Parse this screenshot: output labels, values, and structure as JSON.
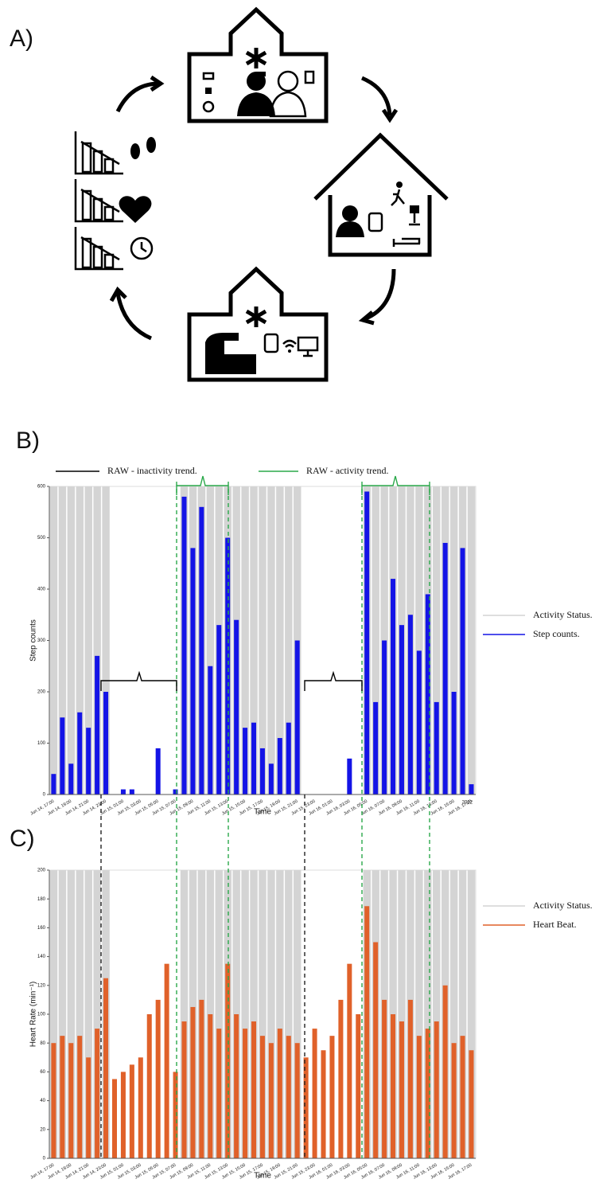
{
  "diagram": {
    "label": "A)"
  },
  "chart_data": [
    {
      "type": "bar",
      "label": "B)",
      "annotations": [
        "RAW - inactivity trend.",
        "RAW - activity trend.",
        "2022"
      ],
      "ylabel": "Step counts",
      "xlabel": "Time",
      "categories": [
        "Jun 14, 17:00",
        null,
        "Jun 14, 19:00",
        null,
        "Jun 14, 21:00",
        null,
        "Jun 14, 23:00",
        null,
        "Jun 15, 01:00",
        null,
        "Jun 15, 03:00",
        null,
        "Jun 15, 05:00",
        null,
        "Jun 15, 07:00",
        null,
        "Jun 15, 09:00",
        null,
        "Jun 15, 11:00",
        null,
        "Jun 15, 13:00",
        null,
        "Jun 15, 15:00",
        null,
        "Jun 15, 17:00",
        null,
        "Jun 15, 19:00",
        null,
        "Jun 15, 21:00",
        null,
        "Jun 15, 23:00",
        null,
        "Jun 16, 01:00",
        null,
        "Jun 16, 03:00",
        null,
        "Jun 16, 05:00",
        null,
        "Jun 16, 07:00",
        null,
        "Jun 16, 09:00",
        null,
        "Jun 16, 11:00",
        null,
        "Jun 16, 13:00",
        null,
        "Jun 16, 15:00",
        null,
        "Jun 16, 17:00"
      ],
      "ylim": [
        0,
        600
      ],
      "yticks": [
        0,
        100,
        200,
        300,
        400,
        500,
        600
      ],
      "legend": "right",
      "series": [
        {
          "name": "Activity Status.",
          "color": "#d4d4d4",
          "values": [
            600,
            600,
            600,
            600,
            600,
            600,
            600,
            null,
            null,
            null,
            null,
            null,
            null,
            null,
            null,
            600,
            600,
            600,
            600,
            600,
            600,
            600,
            600,
            600,
            600,
            600,
            600,
            600,
            600,
            null,
            null,
            null,
            null,
            null,
            null,
            null,
            600,
            600,
            600,
            600,
            600,
            600,
            600,
            600,
            600,
            600,
            600,
            600,
            600
          ]
        },
        {
          "name": "Step counts.",
          "color": "#1414e6",
          "values": [
            40,
            150,
            60,
            160,
            130,
            270,
            200,
            0,
            10,
            10,
            0,
            0,
            90,
            0,
            10,
            580,
            480,
            560,
            250,
            330,
            500,
            340,
            130,
            140,
            90,
            60,
            110,
            140,
            300,
            0,
            0,
            0,
            0,
            0,
            70,
            0,
            590,
            180,
            300,
            420,
            330,
            350,
            280,
            390,
            180,
            490,
            200,
            480,
            20
          ]
        }
      ]
    },
    {
      "type": "bar",
      "label": "C)",
      "ylabel": "Heart Rate (min⁻¹)",
      "xlabel": "Time",
      "categories": [
        "Jun 14, 17:00",
        null,
        "Jun 14, 19:00",
        null,
        "Jun 14, 21:00",
        null,
        "Jun 14, 23:00",
        null,
        "Jun 15, 01:00",
        null,
        "Jun 15, 03:00",
        null,
        "Jun 15, 05:00",
        null,
        "Jun 15, 07:00",
        null,
        "Jun 15, 09:00",
        null,
        "Jun 15, 11:00",
        null,
        "Jun 15, 13:00",
        null,
        "Jun 15, 15:00",
        null,
        "Jun 15, 17:00",
        null,
        "Jun 15, 19:00",
        null,
        "Jun 15, 21:00",
        null,
        "Jun 15, 23:00",
        null,
        "Jun 16, 01:00",
        null,
        "Jun 16, 03:00",
        null,
        "Jun 16, 05:00",
        null,
        "Jun 16, 07:00",
        null,
        "Jun 16, 09:00",
        null,
        "Jun 16, 11:00",
        null,
        "Jun 16, 13:00",
        null,
        "Jun 16, 15:00",
        null,
        "Jun 16, 17:00"
      ],
      "ylim": [
        0,
        200
      ],
      "yticks": [
        0,
        20,
        40,
        60,
        80,
        100,
        120,
        140,
        160,
        180,
        200
      ],
      "legend": "right",
      "series": [
        {
          "name": "Activity Status.",
          "color": "#d4d4d4",
          "values": [
            200,
            200,
            200,
            200,
            200,
            200,
            200,
            null,
            null,
            null,
            null,
            null,
            null,
            null,
            null,
            200,
            200,
            200,
            200,
            200,
            200,
            200,
            200,
            200,
            200,
            200,
            200,
            200,
            200,
            null,
            null,
            null,
            null,
            null,
            null,
            null,
            200,
            200,
            200,
            200,
            200,
            200,
            200,
            200,
            200,
            200,
            200,
            200,
            200
          ]
        },
        {
          "name": "Heart Beat.",
          "color": "#e0612a",
          "values": [
            80,
            85,
            80,
            85,
            70,
            90,
            125,
            55,
            60,
            65,
            70,
            100,
            110,
            135,
            60,
            95,
            105,
            110,
            100,
            90,
            135,
            100,
            90,
            95,
            85,
            80,
            90,
            85,
            80,
            70,
            90,
            75,
            85,
            110,
            135,
            100,
            175,
            150,
            110,
            100,
            95,
            110,
            85,
            90,
            95,
            120,
            80,
            85,
            75
          ]
        }
      ]
    }
  ]
}
